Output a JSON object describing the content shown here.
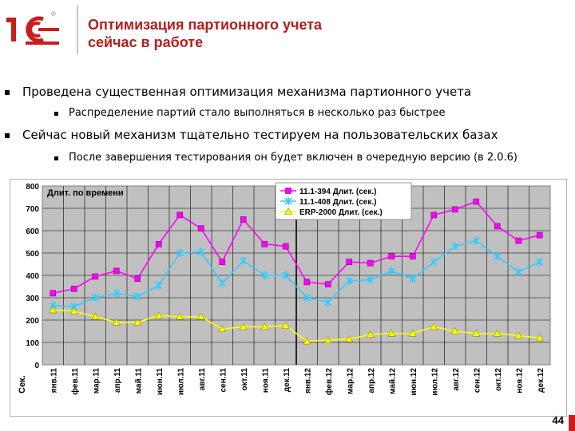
{
  "logo": {
    "text": "1С",
    "mark": "®"
  },
  "slide": {
    "title_line1": "Оптимизация партионного учета",
    "title_line2": "сейчас в работе",
    "bullets": [
      {
        "text": "Проведена существенная оптимизация механизма партионного учета",
        "sub": "Распределение партий стало выполняться в несколько раз быстрее"
      },
      {
        "text": "Сейчас новый механизм тщательно тестируем на пользовательских базах",
        "sub": "После завершения тестирования он будет включен в очередную версию (в 2.0.6)"
      }
    ],
    "page_number": "44"
  },
  "colors": {
    "accent": "#b41e1e",
    "plot_bg": "#c0c0c0",
    "series1": "#ff00ff",
    "series2": "#33ccff",
    "series3": "#ffff00"
  },
  "chart_data": {
    "type": "line",
    "title": "Длит. по времени",
    "ylabel": "Сек.",
    "ylim": [
      0,
      800
    ],
    "yticks": [
      0,
      100,
      200,
      300,
      400,
      500,
      600,
      700,
      800
    ],
    "grid": true,
    "legend_position": "top-center",
    "categories": [
      "янв.11",
      "фев.11",
      "мар.11",
      "апр.11",
      "май.11",
      "июн.11",
      "июл.11",
      "авг.11",
      "сен.11",
      "окт.11",
      "ноя.11",
      "дек.11",
      "янв.12",
      "фев.12",
      "мар.12",
      "апр.12",
      "май.12",
      "июн.12",
      "июл.12",
      "авг.12",
      "сен.12",
      "окт.12",
      "ноя.12",
      "дек.12"
    ],
    "series": [
      {
        "name": "11.1-394 Длит. (сек.)",
        "marker": "square",
        "color": "#ff00ff",
        "values": [
          320,
          340,
          395,
          420,
          385,
          540,
          670,
          610,
          460,
          650,
          540,
          530,
          370,
          360,
          460,
          455,
          485,
          485,
          670,
          695,
          730,
          620,
          555,
          580
        ]
      },
      {
        "name": "11.1-408 Длит. (сек.)",
        "marker": "star",
        "color": "#33ccff",
        "values": [
          265,
          260,
          300,
          320,
          305,
          355,
          500,
          505,
          365,
          465,
          400,
          400,
          300,
          280,
          375,
          380,
          420,
          385,
          460,
          530,
          555,
          485,
          415,
          460
        ]
      },
      {
        "name": "ERP-2000 Длит. (сек.)",
        "marker": "triangle",
        "color": "#ffff00",
        "values": [
          245,
          240,
          215,
          190,
          190,
          220,
          215,
          215,
          160,
          170,
          170,
          175,
          105,
          110,
          115,
          135,
          140,
          140,
          170,
          150,
          140,
          140,
          130,
          120
        ]
      }
    ]
  }
}
